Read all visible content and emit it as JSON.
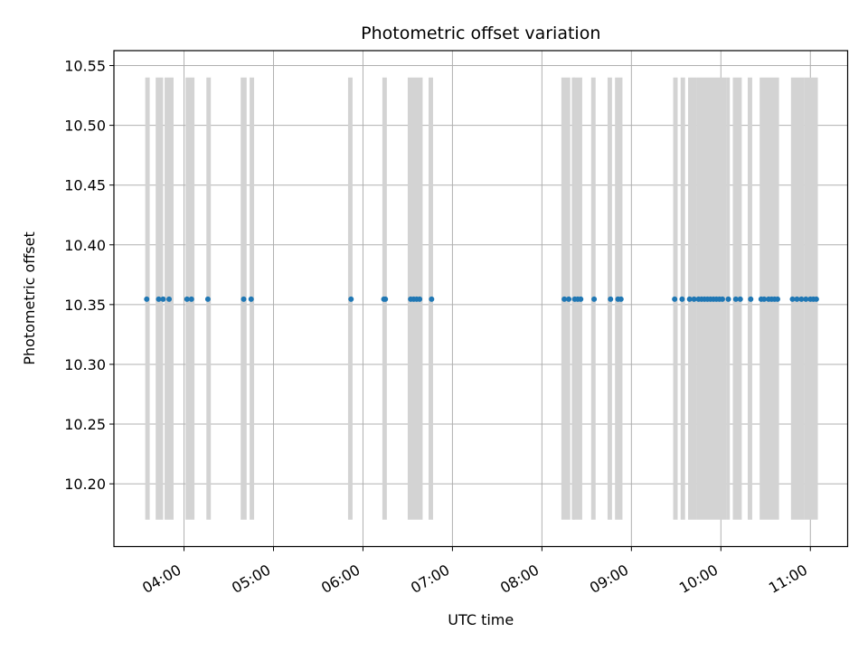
{
  "chart_data": {
    "type": "scatter",
    "title": "Photometric offset variation",
    "xlabel": "UTC time",
    "ylabel": "Photometric offset",
    "xlim": [
      "03:13",
      "11:25"
    ],
    "ylim": [
      10.1475,
      10.5625
    ],
    "x_ticks": [
      "04:00",
      "05:00",
      "06:00",
      "07:00",
      "08:00",
      "09:00",
      "10:00",
      "11:00"
    ],
    "y_ticks": [
      "10.20",
      "10.25",
      "10.30",
      "10.35",
      "10.40",
      "10.45",
      "10.50",
      "10.55"
    ],
    "grid": true,
    "colors": {
      "points": "#1f77b4",
      "bands": "#d3d3d3",
      "grid": "#b0b0b0"
    },
    "band_range": [
      10.17,
      10.54
    ],
    "bands": [
      [
        "03:34",
        "03:37"
      ],
      [
        "03:41",
        "03:46"
      ],
      [
        "03:47",
        "03:53"
      ],
      [
        "04:01",
        "04:07"
      ],
      [
        "04:15",
        "04:18"
      ],
      [
        "04:38",
        "04:42"
      ],
      [
        "04:44",
        "04:47"
      ],
      [
        "05:50",
        "05:53"
      ],
      [
        "06:13",
        "06:16"
      ],
      [
        "06:30",
        "06:40"
      ],
      [
        "06:44",
        "06:47"
      ],
      [
        "08:13",
        "08:19"
      ],
      [
        "08:20",
        "08:22"
      ],
      [
        "08:21",
        "08:27"
      ],
      [
        "08:33",
        "08:36"
      ],
      [
        "08:44",
        "08:47"
      ],
      [
        "08:49",
        "08:54"
      ],
      [
        "09:28",
        "09:31"
      ],
      [
        "09:33",
        "09:36"
      ],
      [
        "09:38",
        "09:44"
      ],
      [
        "09:44",
        "10:04"
      ],
      [
        "10:04",
        "10:06"
      ],
      [
        "10:08",
        "10:14"
      ],
      [
        "10:18",
        "10:21"
      ],
      [
        "10:26",
        "10:39"
      ],
      [
        "10:47",
        "10:56"
      ],
      [
        "10:56",
        "11:05"
      ]
    ],
    "points": {
      "y": 10.3545,
      "x": [
        "03:35",
        "03:43",
        "03:46",
        "03:50",
        "04:02",
        "04:05",
        "04:16",
        "04:40",
        "04:45",
        "05:52",
        "06:14",
        "06:15",
        "06:32",
        "06:34",
        "06:36",
        "06:38",
        "06:46",
        "08:15",
        "08:18",
        "08:22",
        "08:24",
        "08:26",
        "08:35",
        "08:46",
        "08:51",
        "08:53",
        "09:29",
        "09:34",
        "09:39",
        "09:42",
        "09:45",
        "09:47",
        "09:49",
        "09:51",
        "09:53",
        "09:55",
        "09:57",
        "09:59",
        "10:01",
        "10:05",
        "10:10",
        "10:13",
        "10:20",
        "10:27",
        "10:29",
        "10:32",
        "10:34",
        "10:36",
        "10:38",
        "10:48",
        "10:51",
        "10:54",
        "10:57",
        "11:00",
        "11:02",
        "11:04"
      ]
    }
  }
}
